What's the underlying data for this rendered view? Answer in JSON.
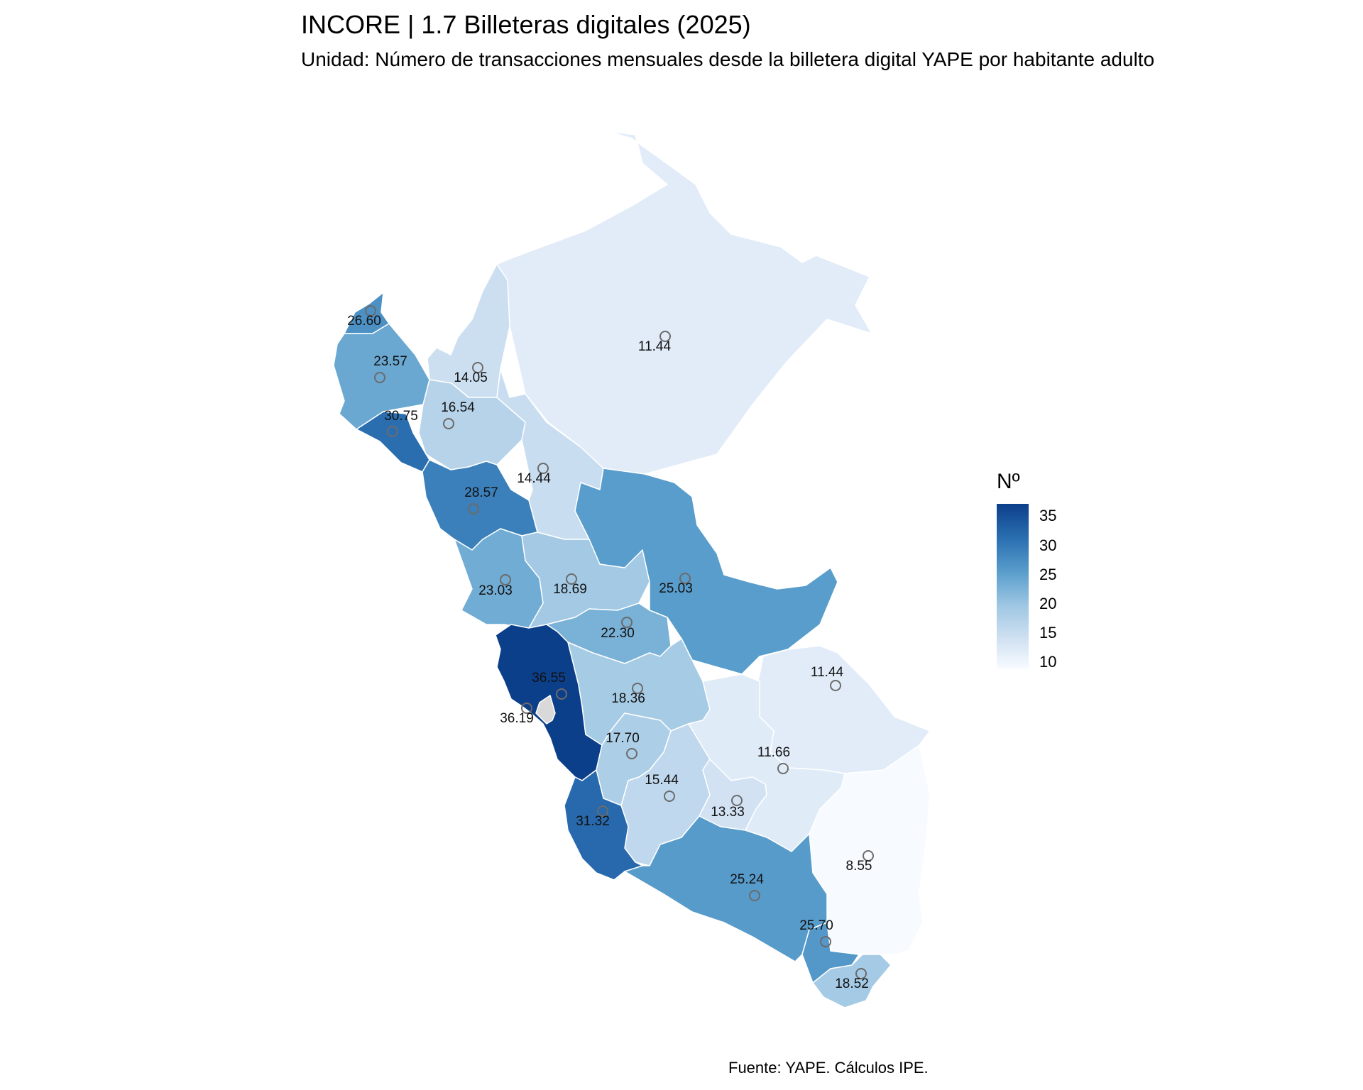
{
  "title": "INCORE | 1.7 Billeteras digitales (2025)",
  "subtitle": "Unidad: Número de transacciones mensuales desde la billetera digital YAPE por habitante adulto",
  "source": "Fuente: YAPE. Cálculos IPE.",
  "legend": {
    "title": "Nº",
    "ticks": [
      "35",
      "30",
      "25",
      "20",
      "15",
      "10"
    ],
    "scale_min": 8.55,
    "scale_max": 36.55,
    "color_low": "#f7fbff",
    "color_high": "#0c3f8a"
  },
  "missing_color": "#d9d9d9",
  "regions": [
    {
      "id": "tumbes",
      "value": 26.6,
      "label": "26.60"
    },
    {
      "id": "piura",
      "value": 23.57,
      "label": "23.57"
    },
    {
      "id": "lambayeque",
      "value": 30.75,
      "label": "30.75"
    },
    {
      "id": "amazonas",
      "value": 14.05,
      "label": "14.05"
    },
    {
      "id": "cajamarca",
      "value": 16.54,
      "label": "16.54"
    },
    {
      "id": "loreto",
      "value": 11.44,
      "label": "11.44"
    },
    {
      "id": "san-martin",
      "value": 14.44,
      "label": "14.44"
    },
    {
      "id": "la-libertad",
      "value": 28.57,
      "label": "28.57"
    },
    {
      "id": "ancash",
      "value": 23.03,
      "label": "23.03"
    },
    {
      "id": "huanuco",
      "value": 18.69,
      "label": "18.69"
    },
    {
      "id": "ucayali",
      "value": 25.03,
      "label": "25.03"
    },
    {
      "id": "pasco",
      "value": 22.3,
      "label": "22.30"
    },
    {
      "id": "lima",
      "value": 36.55,
      "label": "36.55"
    },
    {
      "id": "callao",
      "value": 36.19,
      "label": "36.19"
    },
    {
      "id": "junin",
      "value": 18.36,
      "label": "18.36"
    },
    {
      "id": "madre-de-dios",
      "value": 11.44,
      "label": "11.44"
    },
    {
      "id": "huancavelica",
      "value": 17.7,
      "label": "17.70"
    },
    {
      "id": "cusco",
      "value": 11.66,
      "label": "11.66"
    },
    {
      "id": "ayacucho",
      "value": 15.44,
      "label": "15.44"
    },
    {
      "id": "apurimac",
      "value": 13.33,
      "label": "13.33"
    },
    {
      "id": "ica",
      "value": 31.32,
      "label": "31.32"
    },
    {
      "id": "puno",
      "value": 8.55,
      "label": "8.55"
    },
    {
      "id": "arequipa",
      "value": 25.24,
      "label": "25.24"
    },
    {
      "id": "moquegua",
      "value": 25.7,
      "label": "25.70"
    },
    {
      "id": "tacna",
      "value": 18.52,
      "label": "18.52"
    }
  ]
}
